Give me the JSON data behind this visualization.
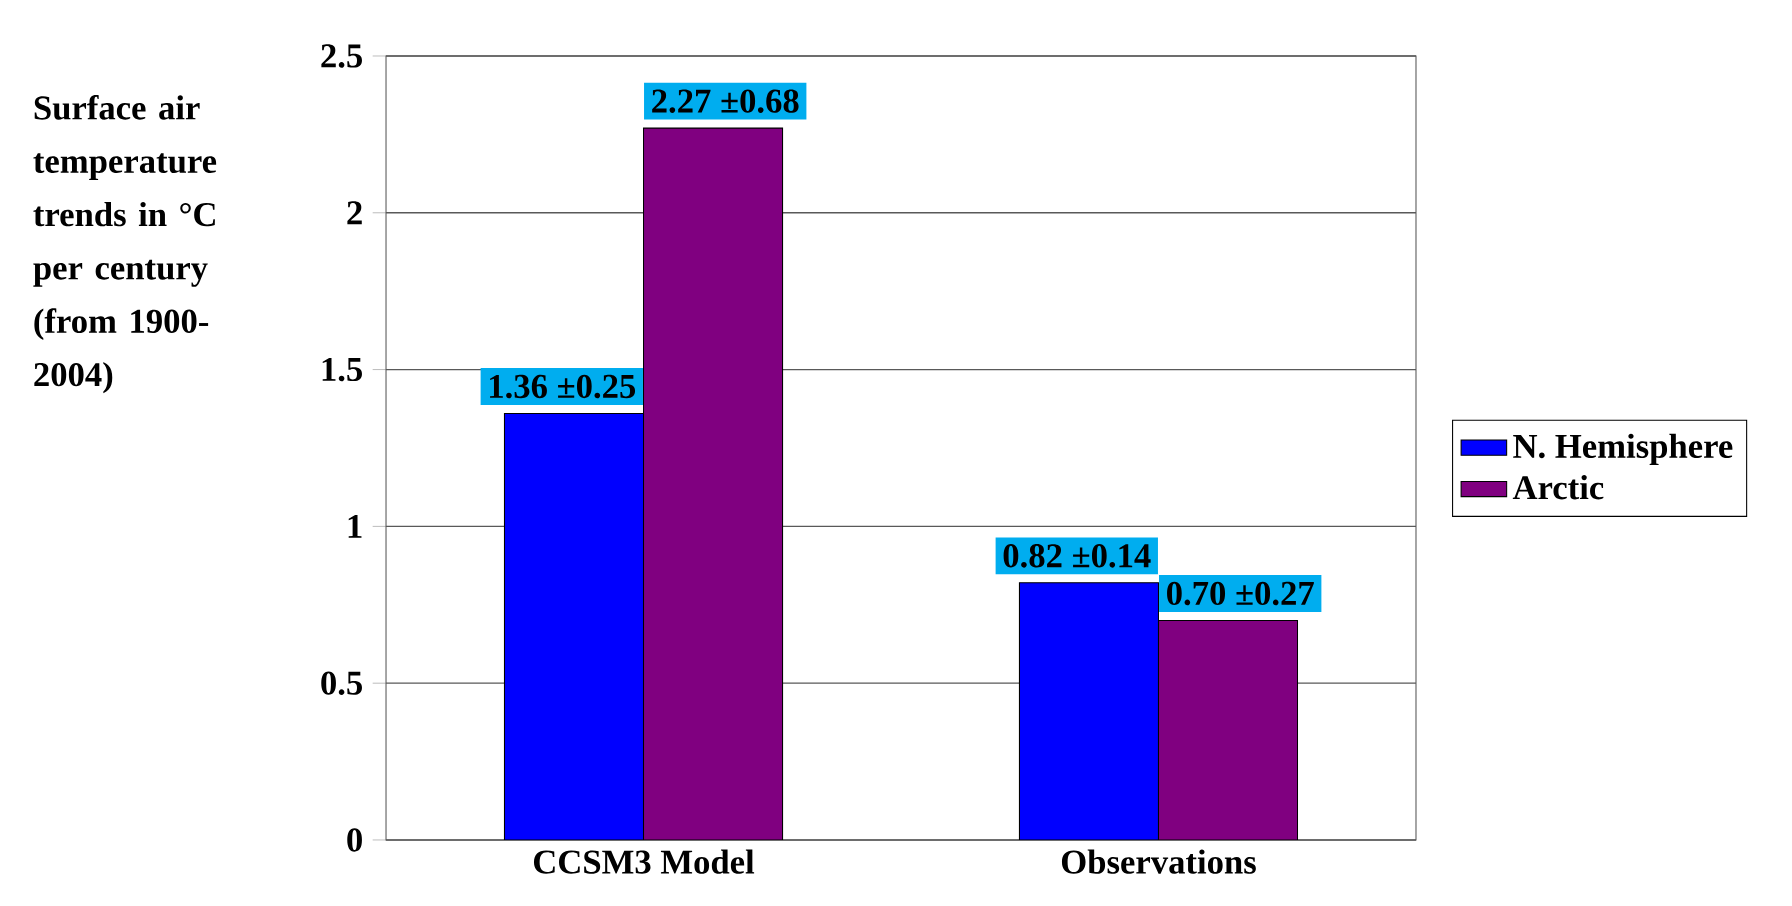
{
  "chart_data": {
    "type": "bar",
    "ylabel": "Surface air temperature trends in °C per century (from 1900-2004)",
    "categories": [
      "CCSM3 Model",
      "Observations"
    ],
    "series": [
      {
        "name": "N. Hemisphere",
        "color": "#0000ff",
        "values": [
          1.36,
          0.82
        ],
        "value_labels": [
          "1.36 ±0.25",
          "0.82 ±0.14"
        ]
      },
      {
        "name": "Arctic",
        "color": "#800080",
        "values": [
          2.27,
          0.7
        ],
        "value_labels": [
          "2.27 ±0.68",
          "0.70 ±0.27"
        ]
      }
    ],
    "ylim": [
      0,
      2.5
    ],
    "yticks": [
      0,
      0.5,
      1,
      1.5,
      2,
      2.5
    ],
    "grid": "y",
    "legend": "right"
  }
}
